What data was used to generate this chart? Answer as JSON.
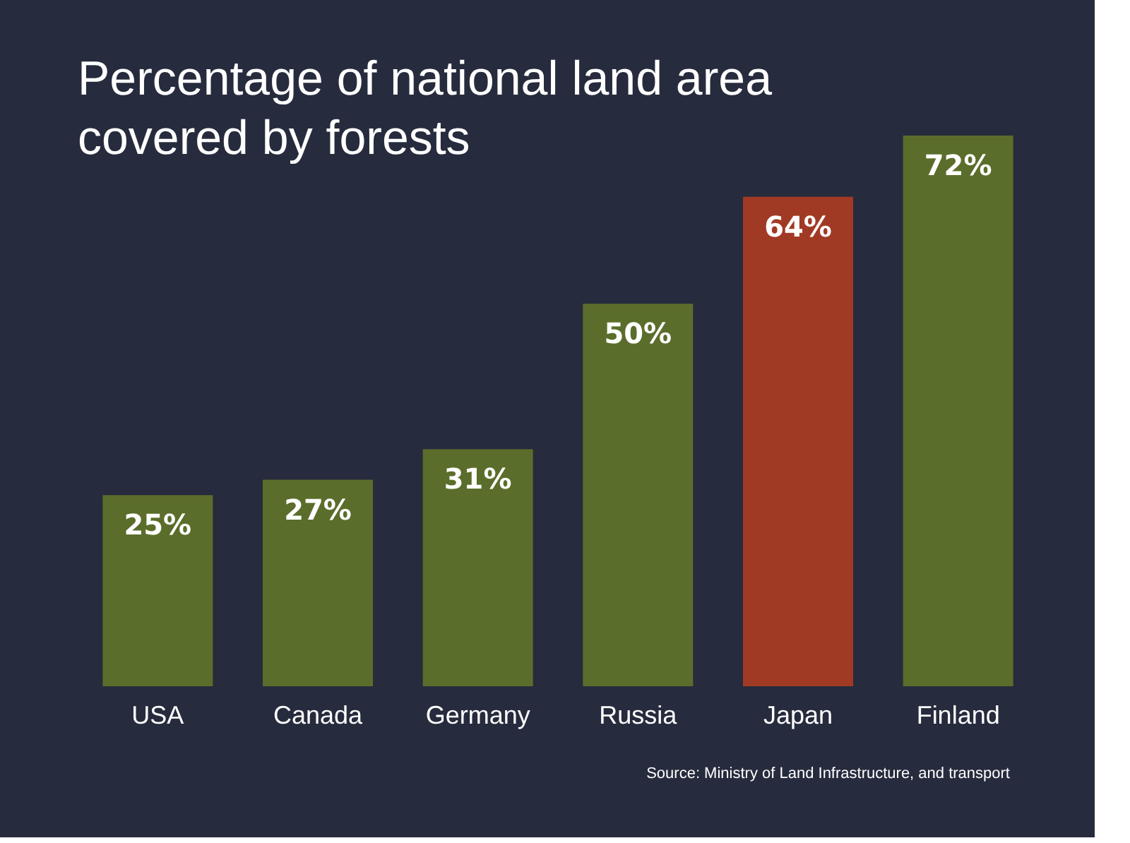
{
  "chart_data": {
    "type": "bar",
    "title": [
      "Percentage of national land area",
      "covered by forests"
    ],
    "categories": [
      "USA",
      "Canada",
      "Germany",
      "Russia",
      "Japan",
      "Finland"
    ],
    "values": [
      25,
      27,
      31,
      50,
      64,
      72
    ],
    "colors": [
      "#5b6d2a",
      "#5b6d2a",
      "#5b6d2a",
      "#5b6d2a",
      "#a13a25",
      "#5b6d2a"
    ],
    "value_labels": [
      "25%",
      "27%",
      "31%",
      "50%",
      "64%",
      "72%"
    ],
    "annotations": [
      "Source: Ministry of Land Infrastructure, and transport"
    ]
  }
}
